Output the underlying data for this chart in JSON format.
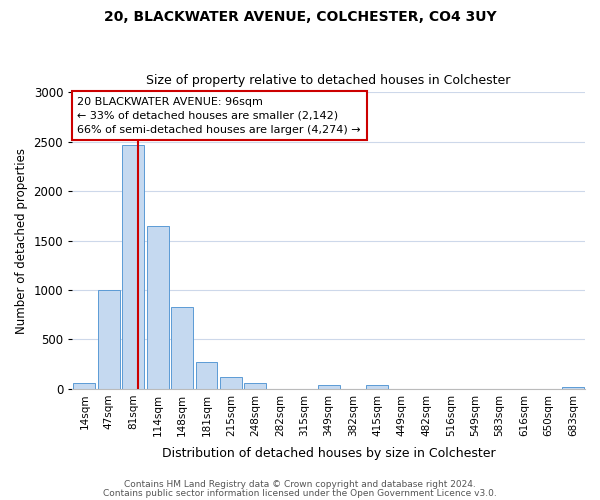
{
  "title": "20, BLACKWATER AVENUE, COLCHESTER, CO4 3UY",
  "subtitle": "Size of property relative to detached houses in Colchester",
  "xlabel": "Distribution of detached houses by size in Colchester",
  "ylabel": "Number of detached properties",
  "bar_labels": [
    "14sqm",
    "47sqm",
    "81sqm",
    "114sqm",
    "148sqm",
    "181sqm",
    "215sqm",
    "248sqm",
    "282sqm",
    "315sqm",
    "349sqm",
    "382sqm",
    "415sqm",
    "449sqm",
    "482sqm",
    "516sqm",
    "549sqm",
    "583sqm",
    "616sqm",
    "650sqm",
    "683sqm"
  ],
  "bar_values": [
    60,
    1000,
    2470,
    1650,
    830,
    270,
    125,
    55,
    0,
    0,
    40,
    0,
    40,
    0,
    0,
    0,
    0,
    0,
    0,
    0,
    20
  ],
  "bar_color": "#c5d9f0",
  "bar_edge_color": "#5b9bd5",
  "vline_color": "#cc0000",
  "vline_x": 2.2,
  "annotation_line1": "20 BLACKWATER AVENUE: 96sqm",
  "annotation_line2": "← 33% of detached houses are smaller (2,142)",
  "annotation_line3": "66% of semi-detached houses are larger (4,274) →",
  "annotation_box_color": "#ffffff",
  "annotation_box_edge": "#cc0000",
  "ylim": [
    0,
    3000
  ],
  "yticks": [
    0,
    500,
    1000,
    1500,
    2000,
    2500,
    3000
  ],
  "footnote1": "Contains HM Land Registry data © Crown copyright and database right 2024.",
  "footnote2": "Contains public sector information licensed under the Open Government Licence v3.0.",
  "bg_color": "#ffffff",
  "grid_color": "#cdd8ea"
}
